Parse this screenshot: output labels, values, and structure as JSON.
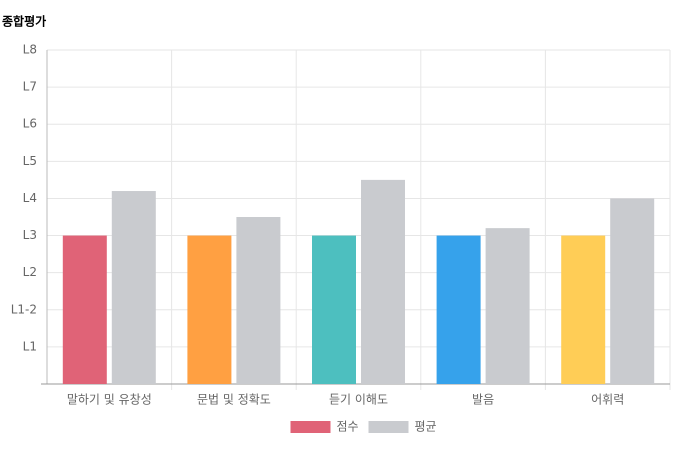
{
  "chart_data": {
    "type": "bar",
    "title": "종합평가",
    "categories": [
      "말하기 및 유창성",
      "문법 및 정확도",
      "듣기 이해도",
      "발음",
      "어휘력"
    ],
    "series": [
      {
        "name": "점수",
        "color": "#e06377",
        "colors": [
          "#e06377",
          "#ffa042",
          "#4dbfbf",
          "#36a2eb",
          "#ffcd56"
        ],
        "values": [
          4,
          4,
          4,
          4,
          4
        ]
      },
      {
        "name": "평균",
        "color": "#c9cbcf",
        "values": [
          5.2,
          4.5,
          5.5,
          4.2,
          5.0
        ]
      }
    ],
    "ylim": [
      0,
      9
    ],
    "yticks": [
      {
        "value": 1,
        "label": "L1"
      },
      {
        "value": 2,
        "label": "L1-2"
      },
      {
        "value": 3,
        "label": "L2"
      },
      {
        "value": 4,
        "label": "L3"
      },
      {
        "value": 5,
        "label": "L4"
      },
      {
        "value": 6,
        "label": "L5"
      },
      {
        "value": 7,
        "label": "L6"
      },
      {
        "value": 8,
        "label": "L7"
      },
      {
        "value": 9,
        "label": "L8"
      }
    ],
    "grid": true,
    "legend": "bottom"
  }
}
